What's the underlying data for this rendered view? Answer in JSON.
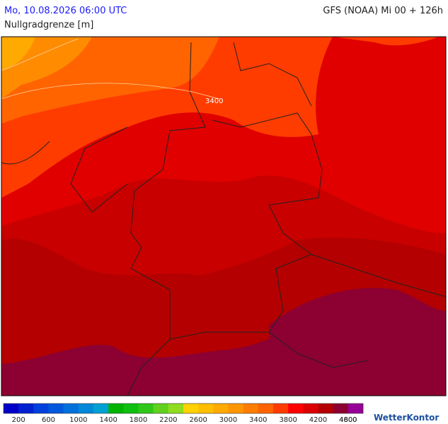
{
  "header": {
    "title": "Mo, 10.08.2026 06:00 UTC",
    "model": "GFS (NOAA) Mi 00 + 126h",
    "subtitle": "Nullgradgrenze [m]"
  },
  "map": {
    "contour_label": "3400"
  },
  "colorbar": {
    "colors": [
      "#0000c8",
      "#0020d2",
      "#0040dc",
      "#0058dc",
      "#0070dc",
      "#0088d8",
      "#00a0d4",
      "#00b400",
      "#10c010",
      "#30c818",
      "#60d21e",
      "#90dc1e",
      "#ffd200",
      "#ffbe00",
      "#ffaa00",
      "#ff9600",
      "#ff7d00",
      "#ff6400",
      "#ff3c00",
      "#ff0000",
      "#dc0000",
      "#b40000",
      "#8c0032",
      "#960096"
    ],
    "labels": [
      200,
      600,
      1000,
      1400,
      1800,
      2200,
      2600,
      3000,
      3400,
      3800,
      4200,
      4600,
      4800
    ]
  },
  "brand": "WetterKontor"
}
